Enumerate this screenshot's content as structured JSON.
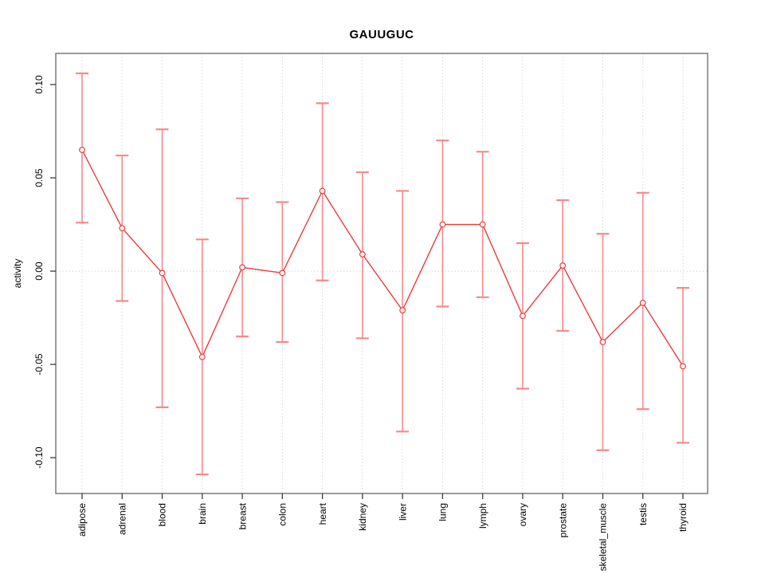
{
  "chart_data": {
    "type": "line",
    "title": "GAUUGUC",
    "xlabel": "",
    "ylabel": "activity",
    "categories": [
      "adipose",
      "adrenal",
      "blood",
      "brain",
      "breast",
      "colon",
      "heart",
      "kidney",
      "liver",
      "lung",
      "lymph",
      "ovary",
      "prostate",
      "skeletal_muscle",
      "testis",
      "thyroid"
    ],
    "series": [
      {
        "name": "activity",
        "values": [
          0.065,
          0.023,
          -0.001,
          -0.046,
          0.002,
          -0.001,
          0.043,
          0.009,
          -0.021,
          0.025,
          0.025,
          -0.024,
          0.003,
          -0.038,
          -0.017,
          -0.051
        ],
        "upper": [
          0.106,
          0.062,
          0.076,
          0.017,
          0.039,
          0.037,
          0.09,
          0.053,
          0.043,
          0.07,
          0.064,
          0.015,
          0.038,
          0.02,
          0.042,
          -0.009
        ],
        "lower": [
          0.026,
          -0.016,
          -0.073,
          -0.109,
          -0.035,
          -0.038,
          -0.005,
          -0.036,
          -0.086,
          -0.019,
          -0.014,
          -0.063,
          -0.032,
          -0.096,
          -0.074,
          -0.092
        ]
      }
    ],
    "y_ticks": {
      "values": [
        0.1,
        0.05,
        0.0,
        -0.05,
        -0.1
      ],
      "labels": [
        "0.10",
        "0.05",
        "0.00",
        "-0.05",
        "-0.10"
      ]
    },
    "ylim": [
      -0.1192,
      0.1167
    ],
    "grid": "dotted vertical gridline at each category, dotted horizontal line at zero",
    "legend": null,
    "marker": "open-circle",
    "colors": {
      "line": "#ed3c3c",
      "error_bar": "#f58a8a",
      "grid": "#d9d9d9",
      "frame": "#7a7a7a",
      "tick": "#3c3c3c",
      "text": "#000000",
      "background": "#ffffff"
    }
  }
}
